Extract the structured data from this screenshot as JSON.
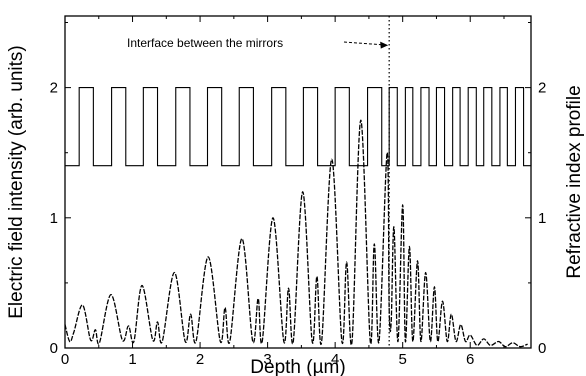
{
  "chart_data": {
    "type": "line",
    "title": "",
    "xlabel": "Depth (µm)",
    "ylabel": "Electric field intensity (arb. units)",
    "y2label": "Refractive index profile",
    "xlim": [
      0,
      6.9
    ],
    "ylim": [
      0,
      2.55
    ],
    "y2lim": [
      0,
      2.55
    ],
    "x_ticks": [
      0,
      1,
      2,
      3,
      4,
      5,
      6
    ],
    "y_ticks": [
      0,
      1,
      2
    ],
    "y2_ticks": [
      0,
      1,
      2
    ],
    "grid": false,
    "interface_x": 4.8,
    "annotation": "Interface between the mirrors",
    "series": [
      {
        "type": "line",
        "style": "dashed",
        "x": [
          0.0,
          0.07,
          0.13,
          0.26,
          0.38,
          0.45,
          0.51,
          0.68,
          0.85,
          0.94,
          1.02,
          1.14,
          1.3,
          1.37,
          1.44,
          1.62,
          1.78,
          1.86,
          1.94,
          2.12,
          2.3,
          2.37,
          2.44,
          2.62,
          2.78,
          2.86,
          2.92,
          3.08,
          3.24,
          3.31,
          3.38,
          3.52,
          3.66,
          3.73,
          3.8,
          3.95,
          4.1,
          4.17,
          4.25,
          4.38,
          4.52,
          4.58,
          4.65,
          4.77,
          4.8,
          4.83,
          4.87,
          4.93,
          5.0,
          5.04,
          5.1,
          5.15,
          5.22,
          5.27,
          5.34,
          5.41,
          5.47,
          5.52,
          5.59,
          5.66,
          5.72,
          5.79,
          5.86,
          5.93,
          6.0,
          6.1,
          6.2,
          6.3,
          6.42,
          6.52,
          6.63,
          6.74,
          6.85
        ],
        "y": [
          0.18,
          0.05,
          0.12,
          0.33,
          0.06,
          0.14,
          0.04,
          0.41,
          0.06,
          0.17,
          0.05,
          0.48,
          0.06,
          0.2,
          0.05,
          0.58,
          0.05,
          0.26,
          0.05,
          0.7,
          0.05,
          0.31,
          0.05,
          0.84,
          0.05,
          0.38,
          0.05,
          1.0,
          0.05,
          0.46,
          0.05,
          1.2,
          0.05,
          0.55,
          0.05,
          1.45,
          0.05,
          0.66,
          0.05,
          1.75,
          0.05,
          0.8,
          0.05,
          1.5,
          0.3,
          0.2,
          0.93,
          0.05,
          1.1,
          0.05,
          0.78,
          0.05,
          0.67,
          0.05,
          0.58,
          0.05,
          0.47,
          0.05,
          0.36,
          0.05,
          0.26,
          0.05,
          0.18,
          0.05,
          0.1,
          0.02,
          0.07,
          0.02,
          0.05,
          0.01,
          0.04,
          0.01,
          0.03
        ]
      },
      {
        "type": "step",
        "style": "solid",
        "levels": [
          1.4,
          2.0
        ],
        "x": [
          0.0,
          0.21,
          0.42,
          0.69,
          0.9,
          1.16,
          1.37,
          1.64,
          1.85,
          2.11,
          2.32,
          2.58,
          2.79,
          3.06,
          3.27,
          3.53,
          3.74,
          4.0,
          4.21,
          4.48,
          4.69,
          4.8,
          4.92,
          5.04,
          5.15,
          5.27,
          5.39,
          5.5,
          5.62,
          5.74,
          5.85,
          5.97,
          6.09,
          6.2,
          6.32,
          6.44,
          6.55,
          6.67,
          6.79,
          6.9
        ],
        "y": [
          1.4,
          2.0,
          1.4,
          2.0,
          1.4,
          2.0,
          1.4,
          2.0,
          1.4,
          2.0,
          1.4,
          2.0,
          1.4,
          2.0,
          1.4,
          2.0,
          1.4,
          2.0,
          1.4,
          2.0,
          1.4,
          2.0,
          1.4,
          2.0,
          1.4,
          2.0,
          1.4,
          2.0,
          1.4,
          2.0,
          1.4,
          2.0,
          1.4,
          2.0,
          1.4,
          2.0,
          1.4,
          2.0,
          1.4,
          2.0
        ]
      }
    ]
  }
}
